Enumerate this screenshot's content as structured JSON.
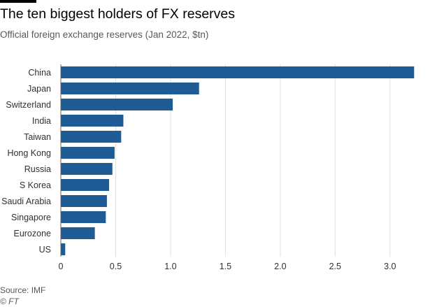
{
  "header": {
    "title": "The ten biggest holders of FX reserves",
    "subtitle": "Official foreign exchange reserves (Jan 2022, $tn)"
  },
  "footer": {
    "source": "Source: IMF",
    "credit": "© FT"
  },
  "colors": {
    "bar": "#1f5b94",
    "grid": "#e4ded9",
    "axis": "#66605c"
  },
  "chart_data": {
    "type": "bar",
    "orientation": "horizontal",
    "categories": [
      "China",
      "Japan",
      "Switzerland",
      "India",
      "Taiwan",
      "Hong Kong",
      "Russia",
      "S Korea",
      "Saudi Arabia",
      "Singapore",
      "Eurozone",
      "US"
    ],
    "values": [
      3.22,
      1.26,
      1.02,
      0.57,
      0.55,
      0.49,
      0.47,
      0.44,
      0.42,
      0.41,
      0.31,
      0.04
    ],
    "xlim": [
      0,
      3.25
    ],
    "xticks": [
      0,
      0.5,
      1.0,
      1.5,
      2.0,
      2.5,
      3.0
    ],
    "xtick_labels": [
      "0",
      "0.5",
      "1.0",
      "1.5",
      "2.0",
      "2.5",
      "3.0"
    ],
    "grid": true
  }
}
